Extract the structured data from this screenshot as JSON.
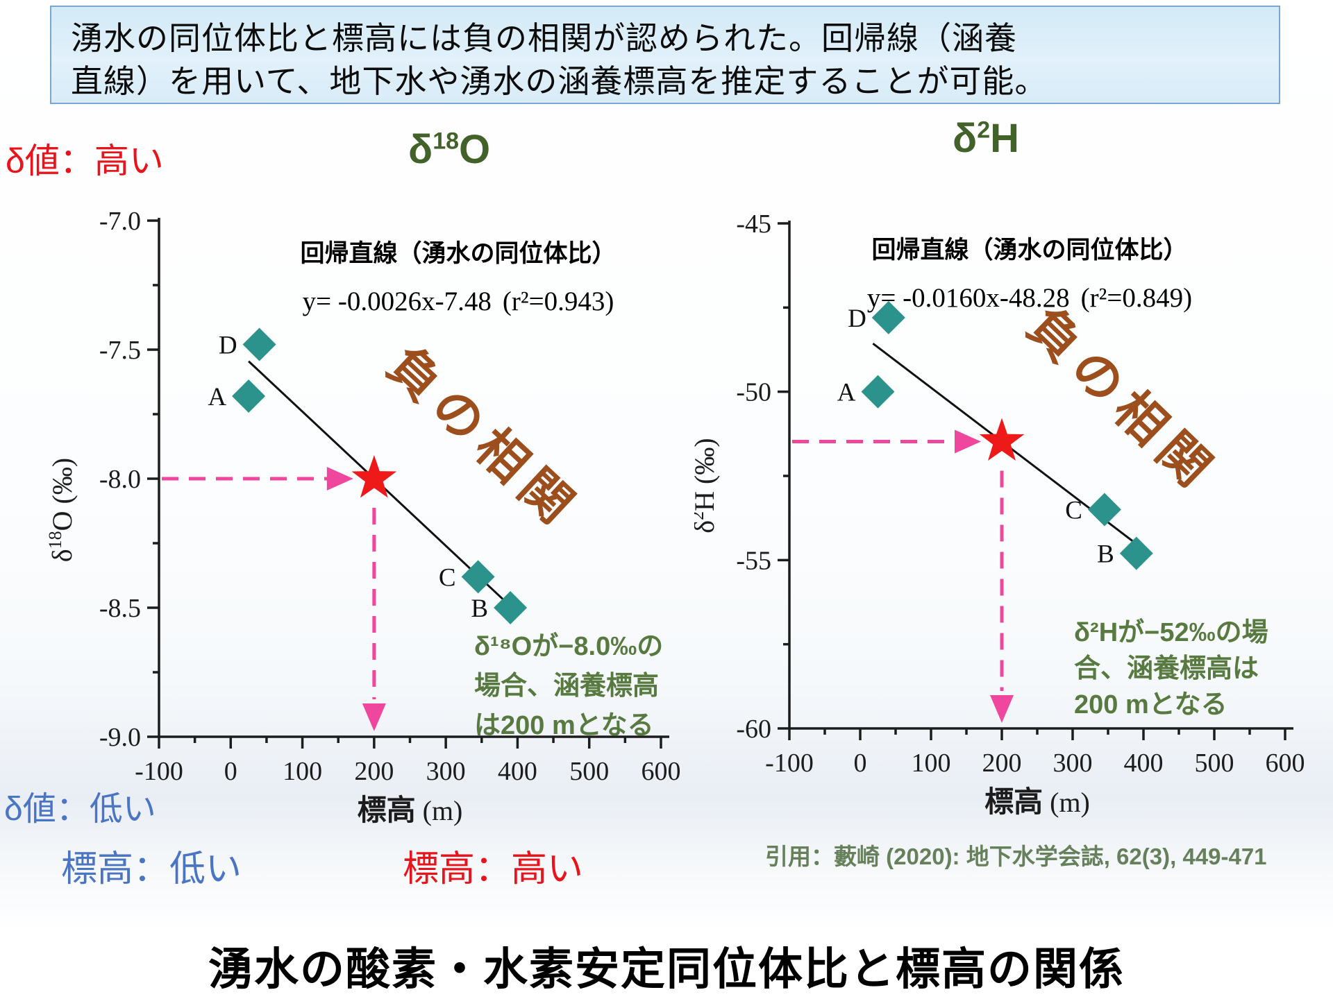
{
  "banner": {
    "line1": "湧水の同位体比と標高には負の相関が認められた。回帰線（涵養",
    "line2": "直線）を用いて、地下水や湧水の涵養標高を推定することが可能。"
  },
  "labels": {
    "delta_high": "δ値：高い",
    "delta_low": "δ値：低い",
    "elev_low": "標高：低い",
    "elev_high": "標高：高い"
  },
  "footer": {
    "citation": "引用：藪崎 (2020): 地下水学会誌, 62(3), 449-471",
    "title": "湧水の酸素・水素安定同位体比と標高の関係"
  },
  "colors": {
    "red": "#e8131b",
    "blue": "#4a74c4",
    "green_title": "#43622a",
    "green_note": "#587a40",
    "brown": "#9c4e1c",
    "teal": "#2c938c",
    "pink": "#f0479e",
    "star": "#ee1a1a",
    "axis": "#1c1c1c"
  },
  "chart_data": [
    {
      "type": "scatter",
      "title": {
        "pre": "δ",
        "sup": "18",
        "post": "O"
      },
      "xlabel": {
        "jp": "標高",
        "unit": " (m)"
      },
      "ylabel": {
        "pre": "δ",
        "sup": "18",
        "post": "O (‰)"
      },
      "xlim": [
        -100,
        600
      ],
      "ylim": [
        -9.0,
        -7.0
      ],
      "x_ticks": [
        {
          "v": -100,
          "label": "-100"
        },
        {
          "v": 0,
          "label": "0"
        },
        {
          "v": 100,
          "label": "100"
        },
        {
          "v": 200,
          "label": "200"
        },
        {
          "v": 300,
          "label": "300"
        },
        {
          "v": 400,
          "label": "400"
        },
        {
          "v": 500,
          "label": "500"
        },
        {
          "v": 600,
          "label": "600"
        }
      ],
      "x_minor": [
        -50,
        50,
        150,
        250,
        350,
        450,
        550
      ],
      "y_ticks": [
        {
          "v": -7.0,
          "label": "-7.0"
        },
        {
          "v": -7.5,
          "label": "-7.5"
        },
        {
          "v": -8.0,
          "label": "-8.0"
        },
        {
          "v": -8.5,
          "label": "-8.5"
        },
        {
          "v": -9.0,
          "label": "-9.0"
        }
      ],
      "y_minor": [
        -7.25,
        -7.75,
        -8.25,
        -8.75
      ],
      "points": [
        {
          "label": "D",
          "x": 40,
          "y": -7.48
        },
        {
          "label": "A",
          "x": 25,
          "y": -7.68
        },
        {
          "label": "C",
          "x": 345,
          "y": -8.38
        },
        {
          "label": "B",
          "x": 390,
          "y": -8.5
        }
      ],
      "regression": {
        "title": "回帰直線（湧水の同位体比）",
        "eq": "y= -0.0026x-7.48",
        "r2": "(r²=0.943)",
        "slope": -0.0026,
        "intercept": -7.48,
        "x_start": 25,
        "x_end": 400
      },
      "star": {
        "x": 200,
        "y": -8.0
      },
      "correlation_label": "負の相関",
      "note_lines": [
        "δ¹⁸Oが−8.0‰の",
        "場合、涵養標高",
        "は200 mとなる"
      ]
    },
    {
      "type": "scatter",
      "title": {
        "pre": "δ",
        "sup": "2",
        "post": "H"
      },
      "xlabel": {
        "jp": "標高",
        "unit": " (m)"
      },
      "ylabel": {
        "pre": "δ",
        "sup": "2",
        "post": "H (‰)"
      },
      "xlim": [
        -100,
        600
      ],
      "ylim": [
        -60,
        -45
      ],
      "x_ticks": [
        {
          "v": -100,
          "label": "-100"
        },
        {
          "v": 0,
          "label": "0"
        },
        {
          "v": 100,
          "label": "100"
        },
        {
          "v": 200,
          "label": "200"
        },
        {
          "v": 300,
          "label": "300"
        },
        {
          "v": 400,
          "label": "400"
        },
        {
          "v": 500,
          "label": "500"
        },
        {
          "v": 600,
          "label": "600"
        }
      ],
      "x_minor": [
        -50,
        50,
        150,
        250,
        350,
        450,
        550
      ],
      "y_ticks": [
        {
          "v": -45,
          "label": "-45"
        },
        {
          "v": -50,
          "label": "-50"
        },
        {
          "v": -55,
          "label": "-55"
        },
        {
          "v": -60,
          "label": "-60"
        }
      ],
      "y_minor": [
        -47.5,
        -52.5,
        -57.5
      ],
      "points": [
        {
          "label": "D",
          "x": 40,
          "y": -47.8
        },
        {
          "label": "A",
          "x": 25,
          "y": -50.0
        },
        {
          "label": "C",
          "x": 345,
          "y": -53.5
        },
        {
          "label": "B",
          "x": 390,
          "y": -54.8
        }
      ],
      "regression": {
        "title": "回帰直線（湧水の同位体比）",
        "eq": "y= -0.0160x-48.28",
        "r2": "(r²=0.849)",
        "slope": -0.016,
        "intercept": -48.28,
        "x_start": 18,
        "x_end": 398
      },
      "star": {
        "x": 200,
        "y": -51.48
      },
      "correlation_label": "負の相関",
      "note_lines": [
        "δ²Hが−52‰の場",
        "合、涵養標高は",
        "200 mとなる"
      ]
    }
  ]
}
